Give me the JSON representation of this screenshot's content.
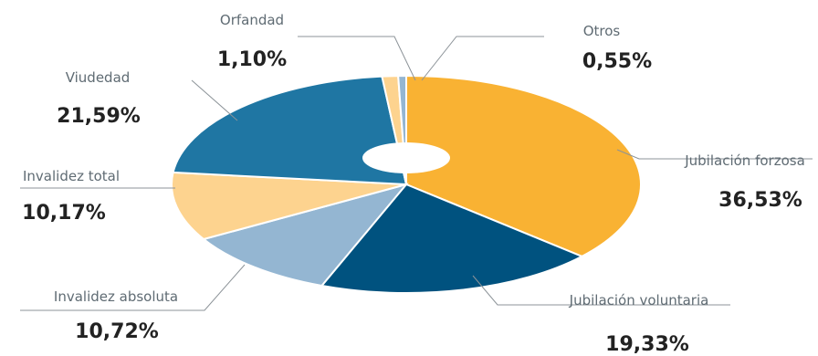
{
  "chart_data": {
    "type": "pie",
    "variant": "donut",
    "title": "",
    "slices": [
      {
        "label": "Jubilación forzosa",
        "value": 36.53,
        "display": "36,53%",
        "color": "#f9b233"
      },
      {
        "label": "Jubilación voluntaria",
        "value": 19.33,
        "display": "19,33%",
        "color": "#00527f"
      },
      {
        "label": "Invalidez absoluta",
        "value": 10.72,
        "display": "10,72%",
        "color": "#94b6d2"
      },
      {
        "label": "Invalidez total",
        "value": 10.17,
        "display": "10,17%",
        "color": "#fdd38f"
      },
      {
        "label": "Viudedad",
        "value": 21.59,
        "display": "21,59%",
        "color": "#1f76a3"
      },
      {
        "label": "Orfandad",
        "value": 1.1,
        "display": "1,10%",
        "color": "#fdd38f"
      },
      {
        "label": "Otros",
        "value": 0.55,
        "display": "0,55%",
        "color": "#94b6d2"
      }
    ]
  }
}
